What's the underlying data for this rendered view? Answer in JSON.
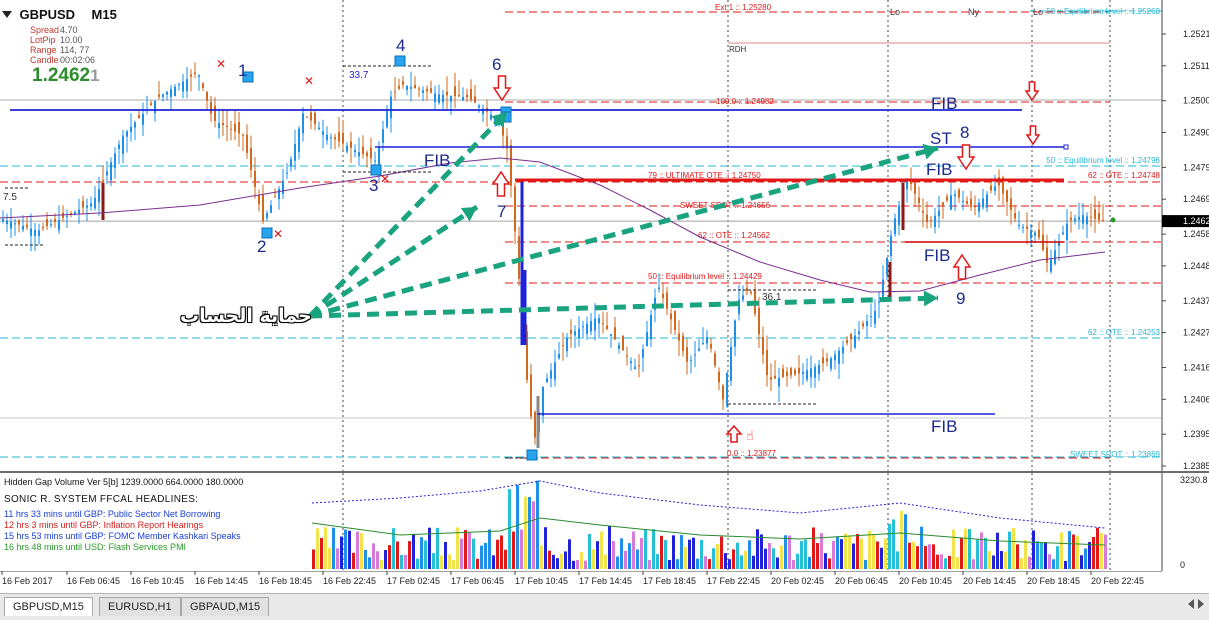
{
  "header": {
    "symbol": "GBPUSD",
    "timeframe": "M15"
  },
  "info": {
    "rows": [
      {
        "label": "Spread",
        "value": "4.70"
      },
      {
        "label": "LotPip",
        "value": "10.00"
      },
      {
        "label": "Range",
        "value": "114, 77"
      },
      {
        "label": "Candle",
        "value": "00:02:06"
      }
    ],
    "price_big": "1.2462",
    "price_small": "1"
  },
  "price_axis": {
    "ticks": [
      "1.2521",
      "1.2511",
      "1.2500",
      "1.2490",
      "1.2479",
      "1.2469",
      "1.2458",
      "1.2448",
      "1.2437",
      "1.2427",
      "1.2416",
      "1.2406",
      "1.2395",
      "1.2385"
    ],
    "current": "1.2462",
    "indicator_max": "3230.8",
    "indicator_min": "0"
  },
  "time_axis": {
    "labels": [
      "16 Feb 2017",
      "16 Feb 06:45",
      "16 Feb 10:45",
      "16 Feb 14:45",
      "16 Feb 18:45",
      "16 Feb 22:45",
      "17 Feb 02:45",
      "17 Feb 06:45",
      "17 Feb 10:45",
      "17 Feb 14:45",
      "17 Feb 18:45",
      "17 Feb 22:45",
      "20 Feb 02:45",
      "20 Feb 06:45",
      "20 Feb 10:45",
      "20 Feb 14:45",
      "20 Feb 18:45",
      "20 Feb 22:45"
    ]
  },
  "sessions": [
    "Lo",
    "Ny",
    "Lo"
  ],
  "levels": {
    "ext": "Ext 1 :: 1.25280",
    "rdh": "RDH",
    "fib100": "100.0 :: 1.24982",
    "ote79": "79 :: ULTIMATE OTE :: 1.24750",
    "sweet": "SWEET SPOT :: 1.24656",
    "ote62": "62 :: OTE :: 1.24562",
    "eq50": "50 :: Equilibrium level :: 1.24429",
    "fib0": "0.0 :: 1.23877",
    "r_eq_top": "50 :: Equilibrium level :: 1.25260",
    "r_eq": "50 :: Equilibrium level :: 1.24796",
    "r_ote_a": "62 :: OTE :: 1.24748",
    "r_ote_b": "62 :: OTE :: 1.24253",
    "r_sweet": "SWEET SPOT :: 1.23869"
  },
  "labels": {
    "arabic": "حماية الحساب",
    "fib": "FIB",
    "st": "ST",
    "n1": "1",
    "n2": "2",
    "n3": "3",
    "n4": "4",
    "n6": "6",
    "n7": "7",
    "n8": "8",
    "n9": "9",
    "v337": "33.7",
    "v75": "7.5",
    "v361": "36.1"
  },
  "indicator": {
    "title": "Hidden Gap Volume Ver 5[b] 1239.0000 664.0000 180.0000",
    "headline_title": "SONIC R. SYSTEM  FFCAL HEADLINES:",
    "headlines": [
      {
        "text": "11 hrs 33 mins until GBP: Public Sector Net Borrowing",
        "color": "#1a3fd6"
      },
      {
        "text": "12 hrs 3 mins until GBP: Inflation Report Hearings",
        "color": "#d42020"
      },
      {
        "text": "15 hrs 53 mins until GBP: FOMC Member Kashkari Speaks",
        "color": "#1a3fd6"
      },
      {
        "text": "16 hrs 48 mins until USD: Flash Services PMI",
        "color": "#2a9a2a"
      }
    ]
  },
  "tabs": [
    "GBPUSD,M15",
    "EURUSD,H1",
    "GBPAUD,M15"
  ],
  "colors": {
    "bull": "#1e90e8",
    "bear": "#d2691e",
    "fib_blue": "#1f22d6",
    "ote_red": "#e01818",
    "cyan": "#26b8d6",
    "teal_arrow": "#19a37f",
    "ma": "#7a2f8f"
  }
}
